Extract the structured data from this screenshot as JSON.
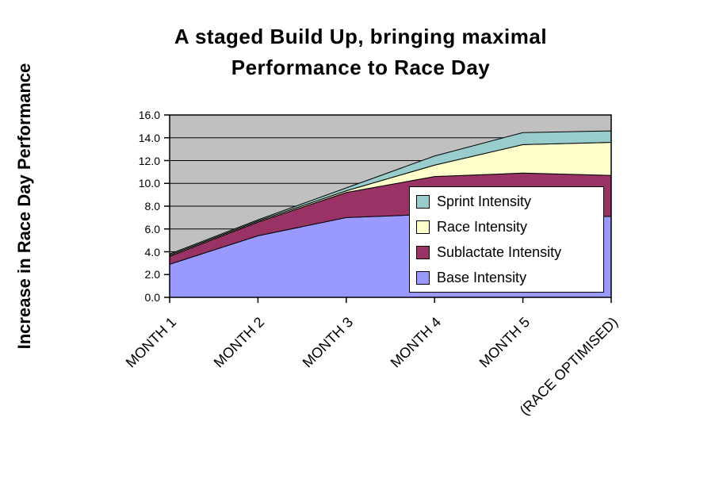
{
  "chart_data": {
    "type": "area",
    "stacked": true,
    "title": "A staged Build Up, bringing maximal Performance to Race Day",
    "title_lines": [
      "A staged Build Up, bringing maximal",
      "Performance to Race Day"
    ],
    "ylabel": "Increase in Race Day Performance",
    "xlabel": "",
    "categories": [
      "MONTH 1",
      "MONTH 2",
      "MONTH 3",
      "MONTH 4",
      "MONTH 5",
      "(RACE OPTIMISED)"
    ],
    "series": [
      {
        "name": "Base Intensity",
        "color": "#9999FF",
        "values": [
          2.9,
          5.4,
          7.0,
          7.3,
          7.2,
          7.1
        ]
      },
      {
        "name": "Sublactate Intensity",
        "color": "#993366",
        "values": [
          0.7,
          1.2,
          2.2,
          3.3,
          3.7,
          3.6
        ]
      },
      {
        "name": "Race Intensity",
        "color": "#FFFFCC",
        "values": [
          0.1,
          0.1,
          0.15,
          1.0,
          2.5,
          2.9
        ]
      },
      {
        "name": "Sprint Intensity",
        "color": "#99CCCC",
        "values": [
          0.1,
          0.1,
          0.25,
          0.8,
          1.05,
          1.0
        ]
      }
    ],
    "stacked_totals": [
      3.8,
      6.8,
      9.6,
      12.4,
      14.45,
      14.6
    ],
    "ylim": [
      0,
      16
    ],
    "ytick_step": 2,
    "ytick_labels": [
      "0.0",
      "2.0",
      "4.0",
      "6.0",
      "8.0",
      "10.0",
      "12.0",
      "14.0",
      "16.0"
    ],
    "grid": true,
    "x_tick_label_rotation_deg": 45,
    "colors": {
      "plot_bg": "#C0C0C0",
      "gridline": "#000000",
      "area_outline": "#000000",
      "axis": "#000000",
      "text": "#000000"
    },
    "legend": {
      "position": "inside-right-overlay",
      "bg_color": "#FFFFFF",
      "border_color": "#000000",
      "items_top_to_bottom": [
        {
          "label": "Sprint Intensity",
          "color": "#99CCCC"
        },
        {
          "label": "Race Intensity",
          "color": "#FFFFCC"
        },
        {
          "label": "Sublactate Intensity",
          "color": "#993366"
        },
        {
          "label": "Base Intensity",
          "color": "#9999FF"
        }
      ]
    }
  }
}
